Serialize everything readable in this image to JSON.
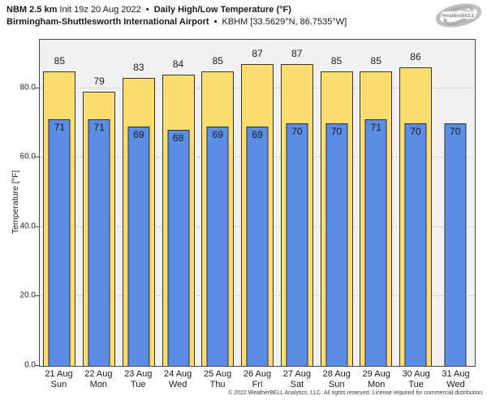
{
  "header": {
    "model": "NBM 2.5 km",
    "init": "Init 19z 20 Aug 2022",
    "sep": "•",
    "product": "Daily High/Low Temperature (°F)",
    "station_name": "Birmingham-Shuttlesworth International Airport",
    "station_id": "KBHM [33.5629°N, 86.7535°W]"
  },
  "logo": {
    "name": "WeatherBELL Analytics",
    "text": "WeatherBELL",
    "subtext": "Analytics LLC"
  },
  "footer": {
    "copyright": "© 2022 WeatherBELL Analytics, LLC. All rights reserved. License required for commercial distribution."
  },
  "chart_data": {
    "type": "bar",
    "title": "Daily High/Low Temperature (°F)",
    "xlabel": "",
    "ylabel": "Temperature [°F]",
    "ylim": [
      0,
      94
    ],
    "grid": "horizontal dashed at major ticks",
    "legend": "none",
    "yticks": [
      {
        "value": 0,
        "label": "0.0"
      },
      {
        "value": 20,
        "label": "20.0"
      },
      {
        "value": 40,
        "label": "40.0"
      },
      {
        "value": 60,
        "label": "60.0"
      },
      {
        "value": 80,
        "label": "80.0"
      }
    ],
    "categories": [
      {
        "date": "21 Aug",
        "day": "Sun"
      },
      {
        "date": "22 Aug",
        "day": "Mon"
      },
      {
        "date": "23 Aug",
        "day": "Tue"
      },
      {
        "date": "24 Aug",
        "day": "Wed"
      },
      {
        "date": "25 Aug",
        "day": "Thu"
      },
      {
        "date": "26 Aug",
        "day": "Fri"
      },
      {
        "date": "27 Aug",
        "day": "Sat"
      },
      {
        "date": "28 Aug",
        "day": "Sun"
      },
      {
        "date": "29 Aug",
        "day": "Mon"
      },
      {
        "date": "30 Aug",
        "day": "Tue"
      },
      {
        "date": "31 Aug",
        "day": "Wed"
      }
    ],
    "series": [
      {
        "name": "Daily High",
        "color": "#fadd6e",
        "values": [
          85,
          79,
          83,
          84,
          85,
          87,
          87,
          85,
          85,
          86,
          null
        ]
      },
      {
        "name": "Daily Low",
        "color": "#5b8de4",
        "values": [
          71,
          71,
          69,
          68,
          69,
          69,
          70,
          70,
          71,
          70,
          70
        ]
      }
    ]
  },
  "colors": {
    "high_bar": "#fadd6e",
    "low_bar": "#5b8de4",
    "bar_border": "#2e2e2e",
    "plot_background": "#f1f1f1",
    "gridline": "#c9c9c9",
    "spine": "#4a4a4a"
  }
}
